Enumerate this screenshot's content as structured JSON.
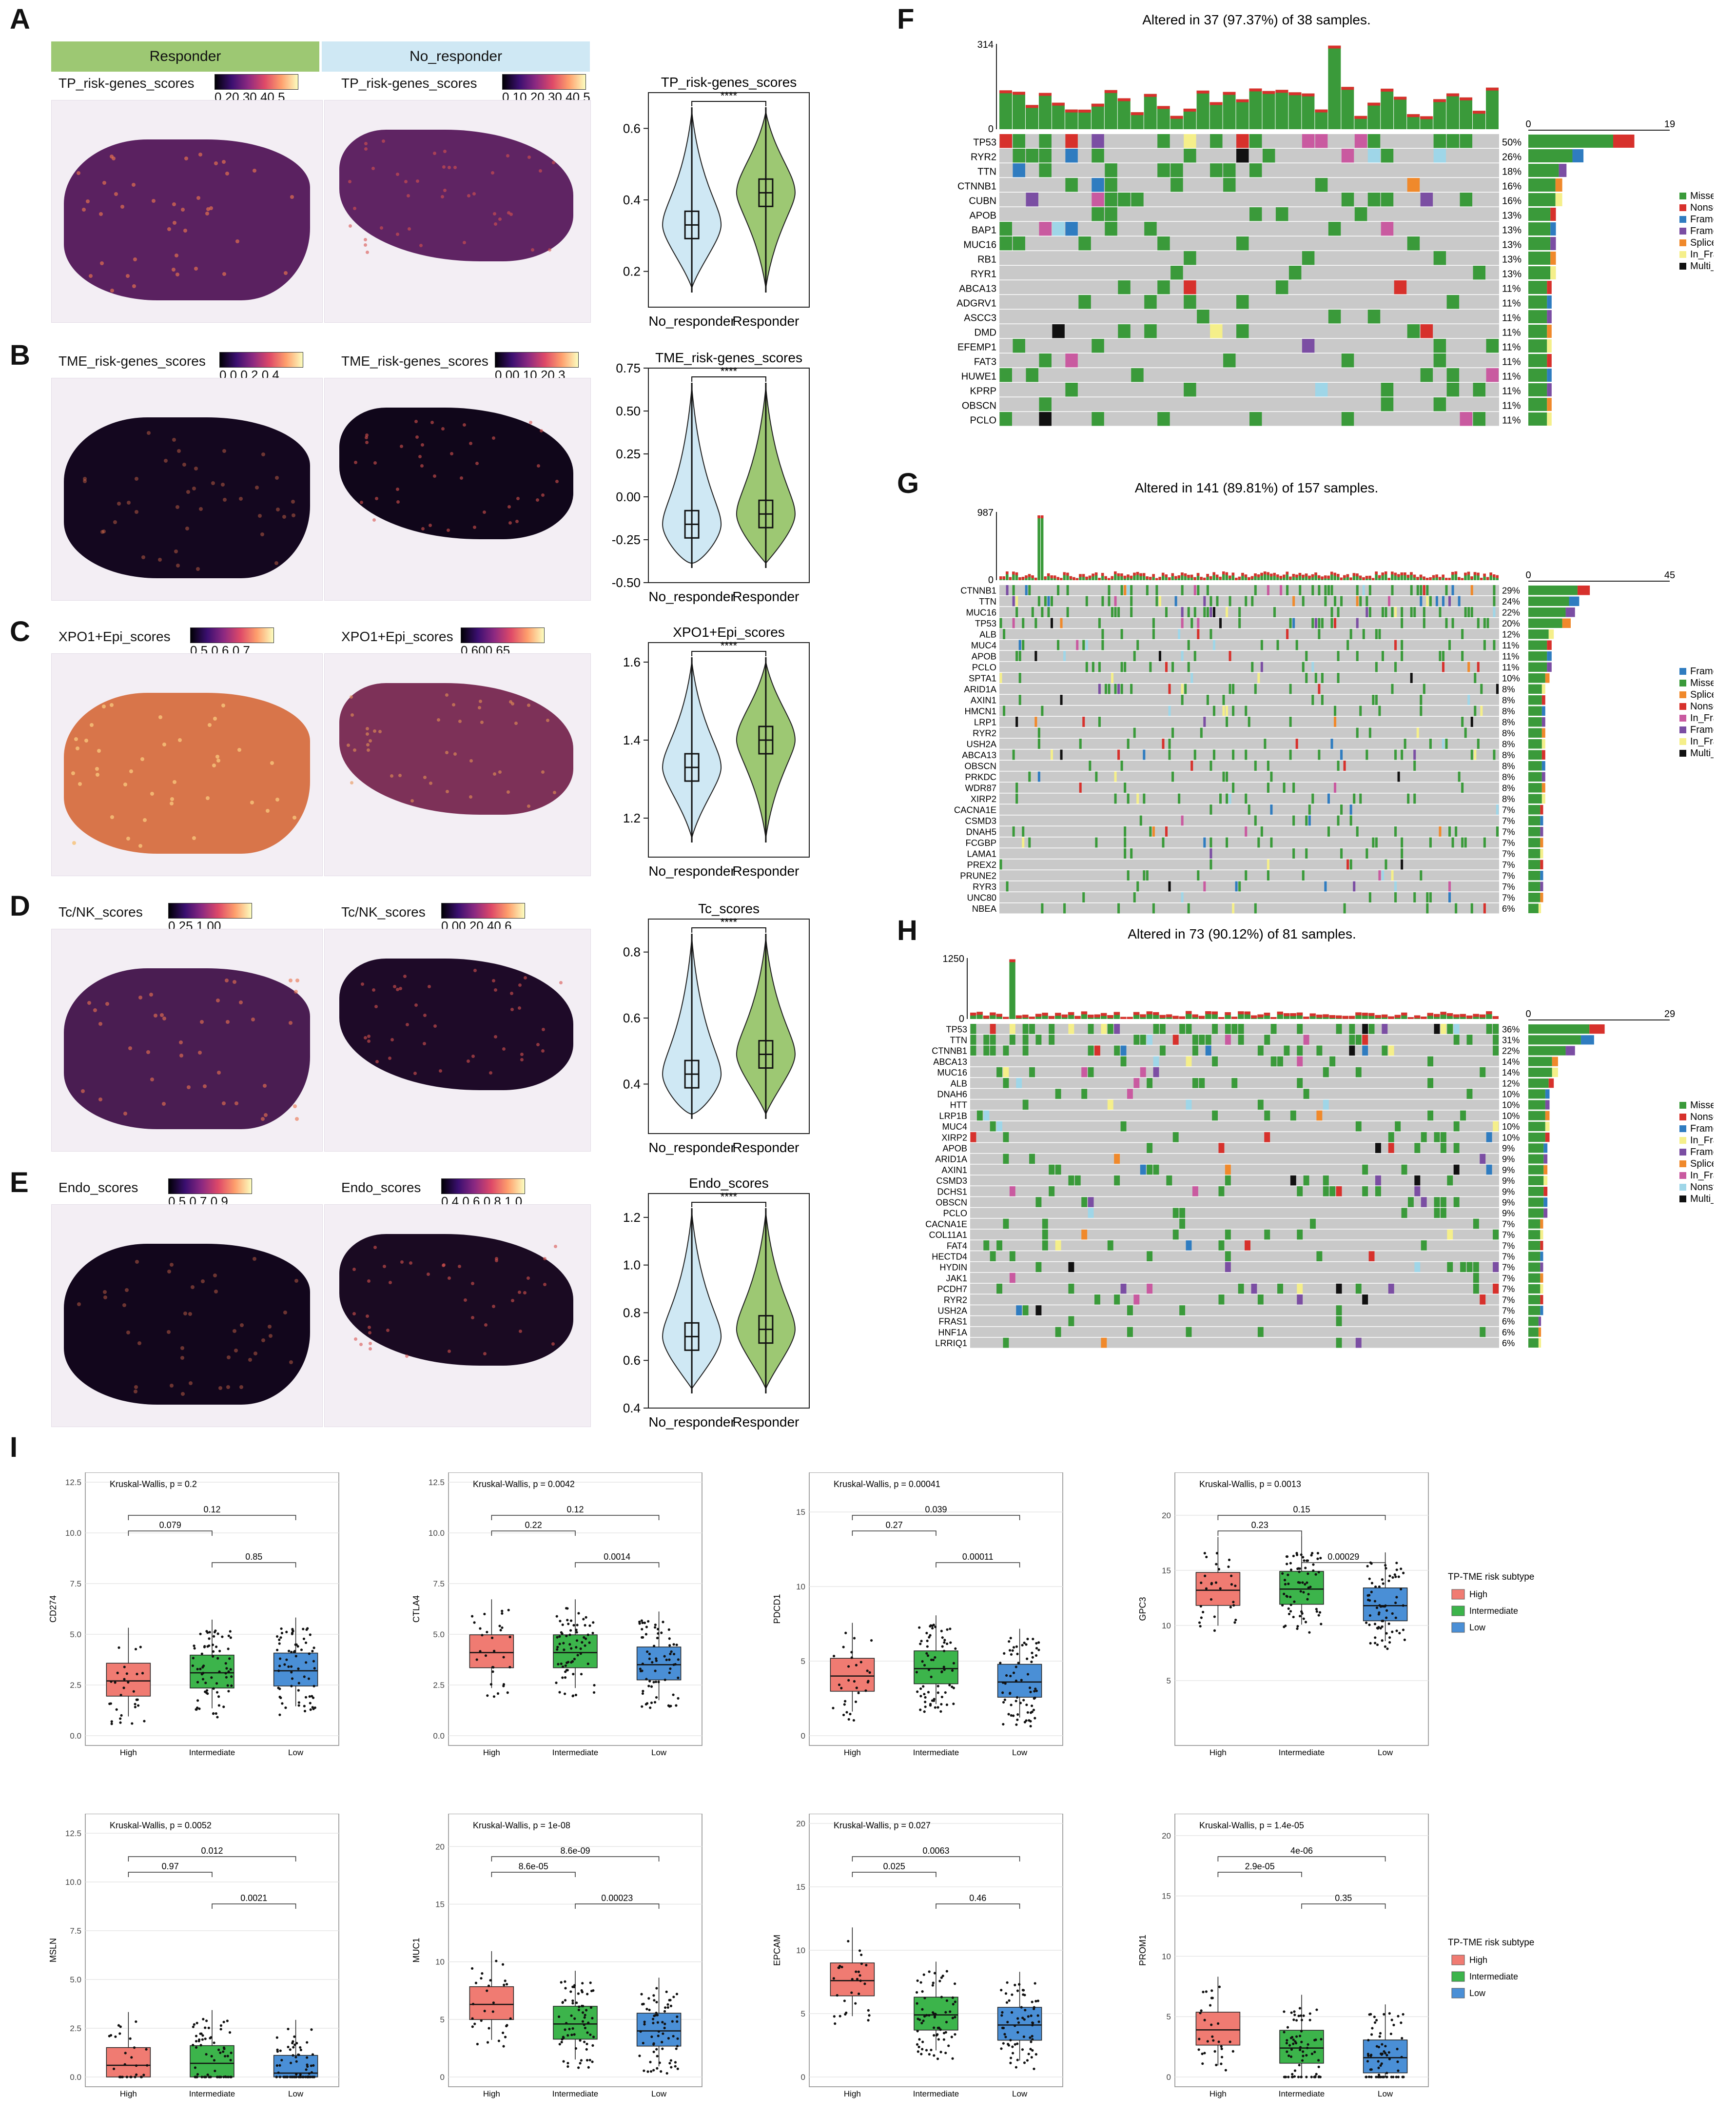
{
  "panels": {
    "A": "A",
    "B": "B",
    "C": "C",
    "D": "D",
    "E": "E",
    "F": "F",
    "G": "G",
    "H": "H",
    "I": "I"
  },
  "spatial": {
    "header_left": "Responder",
    "header_right": "No_responder",
    "header_left_color": "#9dc873",
    "header_right_color": "#cfe8f4",
    "rows": [
      {
        "id": "A",
        "left_label": "TP_risk-genes_scores",
        "left_ticks": "0.20.30.40.5",
        "right_label": "TP_risk-genes_scores",
        "right_ticks": "0.10.20.30.40.5"
      },
      {
        "id": "B",
        "left_label": "TME_risk-genes_scores",
        "left_ticks": "0.0   0.2   0.4",
        "right_label": "TME_risk-genes_scores",
        "right_ticks": "0.00.10.20.3"
      },
      {
        "id": "C",
        "left_label": "XPO1+Epi_scores",
        "left_ticks": "0.5 0.6 0.7",
        "right_label": "XPO1+Epi_scores",
        "right_ticks": "0.600.65"
      },
      {
        "id": "D",
        "left_label": "Tc/NK_scores",
        "left_ticks": "0.25      1.00",
        "right_label": "Tc/NK_scores",
        "right_ticks": "0.00.20.40.6"
      },
      {
        "id": "E",
        "left_label": "Endo_scores",
        "left_ticks": "0.5 0.7 0.9",
        "right_label": "Endo_scores",
        "right_ticks": "0.4 0.6 0.8 1.0"
      }
    ]
  },
  "violins": [
    {
      "title": "TP_risk-genes_scores",
      "sig": "****",
      "yticks": [
        "0.6",
        "0.4",
        "0.2"
      ],
      "ylim": [
        0.1,
        0.7
      ],
      "no_median": 0.33,
      "resp_median": 0.42
    },
    {
      "title": "TME_risk-genes_scores",
      "sig": "****",
      "yticks": [
        "0.75",
        "0.50",
        "0.25",
        "0.00",
        "-0.25",
        "-0.50"
      ],
      "ylim": [
        -0.5,
        0.75
      ],
      "no_median": -0.16,
      "resp_median": -0.1
    },
    {
      "title": "XPO1+Epi_scores",
      "sig": "****",
      "yticks": [
        "1.6",
        "1.4",
        "1.2"
      ],
      "ylim": [
        1.1,
        1.65
      ],
      "no_median": 1.33,
      "resp_median": 1.4
    },
    {
      "title": "Tc_scores",
      "sig": "****",
      "yticks": [
        "0.8",
        "0.6",
        "0.4"
      ],
      "ylim": [
        0.25,
        0.9
      ],
      "no_median": 0.43,
      "resp_median": 0.49
    },
    {
      "title": "Endo_scores",
      "sig": "****",
      "yticks": [
        "1.2",
        "1.0",
        "0.8",
        "0.6",
        "0.4"
      ],
      "ylim": [
        0.4,
        1.3
      ],
      "no_median": 0.7,
      "resp_median": 0.73
    }
  ],
  "violin_xlabels": [
    "No_responder",
    "Responder"
  ],
  "oncoplots": [
    {
      "id": "F",
      "title": "Altered in 37 (97.37%) of 38 samples.",
      "ymax": "314",
      "ymin": "0",
      "xmax_left": "0",
      "xmax_right": "19",
      "genes": [
        "TP53",
        "RYR2",
        "TTN",
        "CTNNB1",
        "CUBN",
        "APOB",
        "BAP1",
        "MUC16",
        "RB1",
        "RYR1",
        "ABCA13",
        "ADGRV1",
        "ASCC3",
        "DMD",
        "EFEMP1",
        "FAT3",
        "HUWE1",
        "KPRP",
        "OBSCN",
        "PCLO"
      ],
      "pcts": [
        "50%",
        "26%",
        "18%",
        "16%",
        "16%",
        "13%",
        "13%",
        "13%",
        "13%",
        "13%",
        "11%",
        "11%",
        "11%",
        "11%",
        "11%",
        "11%",
        "11%",
        "11%",
        "11%",
        "11%"
      ],
      "legend": [
        "Missense_Mutation",
        "Nonsense_Mutation",
        "Frame_Shift_Del",
        "Frame_Shift_Ins",
        "Splice_Site",
        "In_Frame_Del",
        "Multi_Hit"
      ]
    },
    {
      "id": "G",
      "title": "Altered in 141 (89.81%) of 157 samples.",
      "ymax": "987",
      "ymin": "0",
      "xmax_left": "0",
      "xmax_right": "45",
      "genes": [
        "CTNNB1",
        "TTN",
        "MUC16",
        "TP53",
        "ALB",
        "MUC4",
        "APOB",
        "PCLO",
        "SPTA1",
        "ARID1A",
        "AXIN1",
        "HMCN1",
        "LRP1",
        "RYR2",
        "USH2A",
        "ABCA13",
        "OBSCN",
        "PRKDC",
        "WDR87",
        "XIRP2",
        "CACNA1E",
        "CSMD3",
        "DNAH5",
        "FCGBP",
        "LAMA1",
        "PREX2",
        "PRUNE2",
        "RYR3",
        "UNC80",
        "NBEA"
      ],
      "pcts": [
        "29%",
        "24%",
        "22%",
        "20%",
        "12%",
        "11%",
        "11%",
        "11%",
        "10%",
        "8%",
        "8%",
        "8%",
        "8%",
        "8%",
        "8%",
        "8%",
        "8%",
        "8%",
        "8%",
        "8%",
        "7%",
        "7%",
        "7%",
        "7%",
        "7%",
        "7%",
        "7%",
        "7%",
        "7%",
        "6%"
      ],
      "legend": [
        "Frame_Shift_Del",
        "Missense_Mutation",
        "Splice_Site",
        "Nonsense_Mutation",
        "In_Frame_Ins",
        "Frame_Shift_Ins",
        "In_Frame_Del",
        "Multi_Hit"
      ]
    },
    {
      "id": "H",
      "title": "Altered in 73 (90.12%) of 81 samples.",
      "ymax": "1250",
      "ymin": "0",
      "xmax_left": "0",
      "xmax_right": "29",
      "genes": [
        "TP53",
        "TTN",
        "CTNNB1",
        "ABCA13",
        "MUC16",
        "ALB",
        "DNAH6",
        "HTT",
        "LRP1B",
        "MUC4",
        "XIRP2",
        "APOB",
        "ARID1A",
        "AXIN1",
        "CSMD3",
        "DCHS1",
        "OBSCN",
        "PCLO",
        "CACNA1E",
        "COL11A1",
        "FAT4",
        "HECTD4",
        "HYDIN",
        "JAK1",
        "PCDH7",
        "RYR2",
        "USH2A",
        "FRAS1",
        "HNF1A",
        "LRRIQ1"
      ],
      "pcts": [
        "36%",
        "31%",
        "22%",
        "14%",
        "14%",
        "12%",
        "10%",
        "10%",
        "10%",
        "10%",
        "10%",
        "9%",
        "9%",
        "9%",
        "9%",
        "9%",
        "9%",
        "9%",
        "7%",
        "7%",
        "7%",
        "7%",
        "7%",
        "7%",
        "7%",
        "7%",
        "7%",
        "6%",
        "6%",
        "6%"
      ],
      "legend": [
        "Missense_Mutation",
        "Nonsense_Mutation",
        "Frame_Shift_Del",
        "In_Frame_Del",
        "Frame_Shift_Ins",
        "Splice_Site",
        "In_Frame_Ins",
        "Nonstop_Mutation",
        "Multi_Hit"
      ]
    }
  ],
  "mutation_colors": {
    "Missense_Mutation": "#3a9a3a",
    "Nonsense_Mutation": "#d7312c",
    "Frame_Shift_Del": "#2f7cc0",
    "Frame_Shift_Ins": "#7b4ea3",
    "Splice_Site": "#f0892b",
    "In_Frame_Del": "#f5ef8a",
    "In_Frame_Ins": "#c95aa0",
    "Nonstop_Mutation": "#9fd6e8",
    "Multi_Hit": "#111111"
  },
  "boxplots": [
    {
      "gene": "CD274",
      "test": "Kruskal-Wallis, p = 0.2",
      "yticks": [
        "12.5",
        "10.0",
        "7.5",
        "5.0",
        "2.5",
        "0.0"
      ],
      "ymax": 12.5,
      "pairs": [
        "0.079",
        "0.12",
        "0.85"
      ],
      "med": [
        2.7,
        3.1,
        3.2
      ]
    },
    {
      "gene": "CTLA4",
      "test": "Kruskal-Wallis, p = 0.0042",
      "yticks": [
        "12.5",
        "10.0",
        "7.5",
        "5.0",
        "2.5",
        "0.0"
      ],
      "ymax": 12.5,
      "pairs": [
        "0.22",
        "0.12",
        "0.0014"
      ],
      "med": [
        4.1,
        4.1,
        3.5
      ]
    },
    {
      "gene": "PDCD1",
      "test": "Kruskal-Wallis, p = 0.00041",
      "yticks": [
        "15",
        "10",
        "5",
        "0"
      ],
      "ymax": 17,
      "pairs": [
        "0.27",
        "0.039",
        "0.00011"
      ],
      "med": [
        4.0,
        4.5,
        3.6
      ]
    },
    {
      "gene": "GPC3",
      "test": "Kruskal-Wallis, p = 0.0013",
      "yticks": [
        "20",
        "15",
        "10",
        "5"
      ],
      "ymax": 23,
      "pairs": [
        "0.23",
        "0.15",
        "0.00029"
      ],
      "med": [
        13.2,
        13.3,
        11.8
      ]
    },
    {
      "gene": "MSLN",
      "test": "Kruskal-Wallis, p = 0.0052",
      "yticks": [
        "12.5",
        "10.0",
        "7.5",
        "5.0",
        "2.5",
        "0.0"
      ],
      "ymax": 13,
      "pairs": [
        "0.97",
        "0.012",
        "0.0021"
      ],
      "med": [
        0.6,
        0.7,
        0.2
      ]
    },
    {
      "gene": "MUC1",
      "test": "Kruskal-Wallis, p = 1e-08",
      "yticks": [
        "20",
        "15",
        "10",
        "5",
        "0"
      ],
      "ymax": 22,
      "pairs": [
        "8.6e-05",
        "8.6e-09",
        "0.00023"
      ],
      "med": [
        6.3,
        4.6,
        4.0
      ]
    },
    {
      "gene": "EPCAM",
      "test": "Kruskal-Wallis, p = 0.027",
      "yticks": [
        "20",
        "15",
        "10",
        "5",
        "0"
      ],
      "ymax": 20,
      "pairs": [
        "0.025",
        "0.0063",
        "0.46"
      ],
      "med": [
        7.6,
        4.9,
        4.1
      ]
    },
    {
      "gene": "PROM1",
      "test": "Kruskal-Wallis, p = 1.4e-05",
      "yticks": [
        "20",
        "15",
        "10",
        "5",
        "0"
      ],
      "ymax": 21,
      "pairs": [
        "2.9e-05",
        "4e-06",
        "0.35"
      ],
      "med": [
        3.9,
        2.4,
        1.6
      ]
    }
  ],
  "box_groups": [
    "High",
    "Intermediate",
    "Low"
  ],
  "box_colors": [
    "#f07b72",
    "#3cb44b",
    "#4a8fd6"
  ],
  "box_legend_title": "TP-TME risk subtype"
}
